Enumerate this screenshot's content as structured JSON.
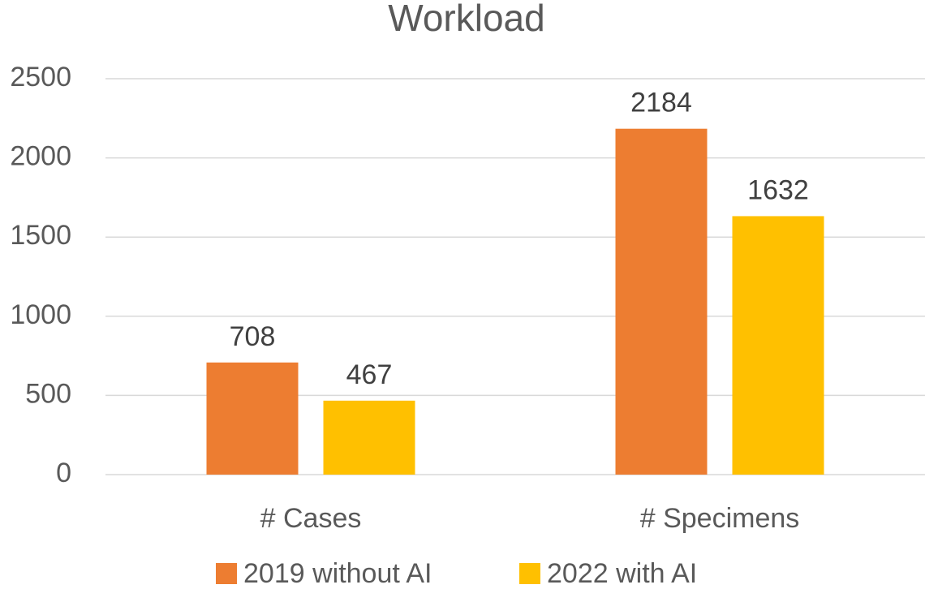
{
  "chart_data": {
    "type": "bar",
    "title": "Workload",
    "categories": [
      "# Cases",
      "# Specimens"
    ],
    "series": [
      {
        "name": "2019 without AI",
        "color": "#ED7D31",
        "values": [
          708,
          2184
        ]
      },
      {
        "name": "2022 with AI",
        "color": "#FFC000",
        "values": [
          467,
          1632
        ]
      }
    ],
    "ylim": [
      0,
      2500
    ],
    "yticks": [
      0,
      500,
      1000,
      1500,
      2000,
      2500
    ],
    "grid": true,
    "legend": "bottom"
  }
}
